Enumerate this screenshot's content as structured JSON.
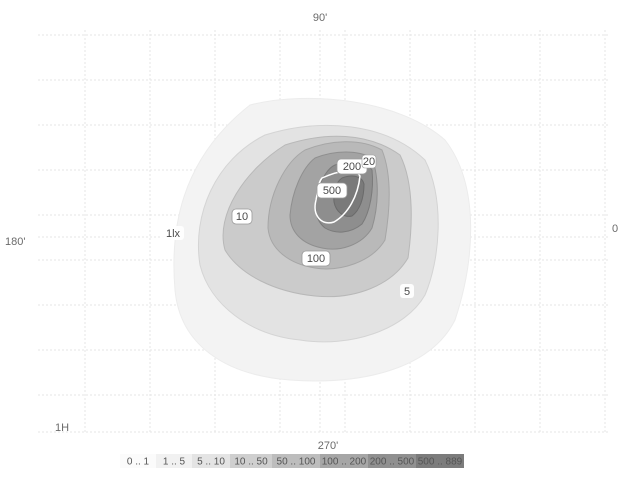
{
  "chart_data": {
    "type": "heatmap",
    "direction_labels": {
      "top": "90'",
      "left": "180'",
      "right": "0",
      "bottom": "270'"
    },
    "corner_label": "1H",
    "unit_label": "1lx",
    "contour_labels": [
      "10",
      "5",
      "500",
      "200",
      "100",
      "20"
    ],
    "legend": [
      {
        "range": "0 .. 1",
        "color": "#fbfbfb"
      },
      {
        "range": "1 .. 5",
        "color": "#f1f1f1"
      },
      {
        "range": "5 .. 10",
        "color": "#e4e4e4"
      },
      {
        "range": "10 .. 50",
        "color": "#cfcfcf"
      },
      {
        "range": "50 .. 100",
        "color": "#bdbdbd"
      },
      {
        "range": "100 .. 200",
        "color": "#a6a6a6"
      },
      {
        "range": "200 .. 500",
        "color": "#909090"
      },
      {
        "range": "500 .. 889",
        "color": "#7c7c7c"
      }
    ]
  }
}
